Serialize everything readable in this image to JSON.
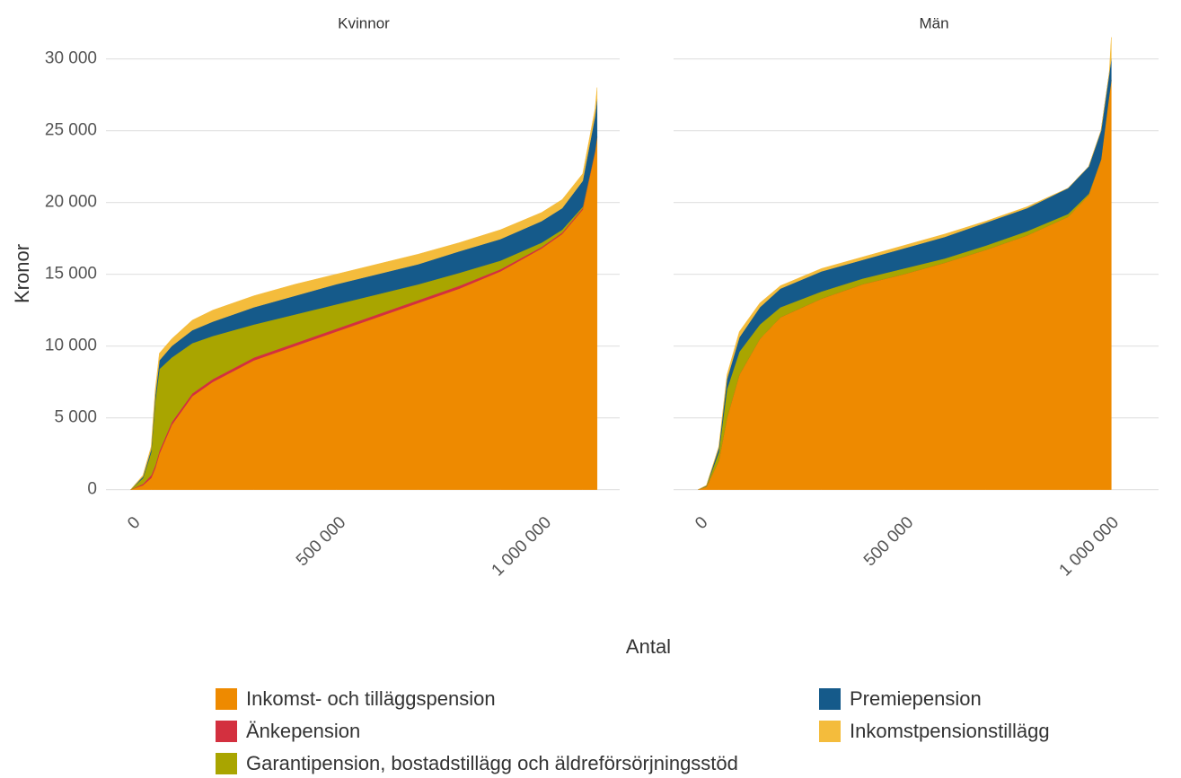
{
  "chart_data": [
    {
      "type": "area",
      "title": "Kvinnor",
      "ylabel": "Kronor",
      "xlabel": "Antal",
      "x": [
        0,
        30000,
        50000,
        60000,
        70000,
        100000,
        150000,
        200000,
        300000,
        400000,
        500000,
        600000,
        700000,
        800000,
        900000,
        1000000,
        1050000,
        1100000,
        1130000,
        1135000
      ],
      "series": [
        {
          "name": "Inkomst- och tilläggspension",
          "color": "#ee8a00",
          "values": [
            0,
            300,
            800,
            1500,
            2500,
            4500,
            6500,
            7500,
            9000,
            10000,
            11000,
            12000,
            13000,
            14000,
            15200,
            16800,
            17800,
            19500,
            23500,
            24500
          ]
        },
        {
          "name": "Änkepension",
          "color": "#d3303f",
          "values": [
            0,
            100,
            200,
            200,
            200,
            200,
            200,
            200,
            200,
            200,
            200,
            200,
            200,
            200,
            150,
            100,
            100,
            100,
            100,
            100
          ]
        },
        {
          "name": "Garantipension, bostadstillägg och äldreförsörjningsstöd",
          "color": "#a9a500",
          "values": [
            0,
            400,
            1600,
            4500,
            5700,
            4500,
            3500,
            3000,
            2300,
            2000,
            1700,
            1400,
            1100,
            900,
            600,
            300,
            200,
            100,
            0,
            0
          ]
        },
        {
          "name": "Premiepension",
          "color": "#155a8a",
          "values": [
            0,
            100,
            200,
            400,
            600,
            800,
            900,
            1000,
            1200,
            1300,
            1400,
            1400,
            1400,
            1500,
            1500,
            1500,
            1500,
            1800,
            2400,
            2600
          ]
        },
        {
          "name": "Inkomstpensionstillägg",
          "color": "#f4bc3c",
          "values": [
            0,
            100,
            200,
            400,
            500,
            500,
            700,
            800,
            800,
            800,
            700,
            700,
            700,
            600,
            650,
            600,
            600,
            500,
            500,
            800
          ]
        }
      ],
      "xlim": [
        -60000,
        1190000
      ],
      "ylim": [
        -1000,
        31600
      ],
      "xticks": [
        0,
        {
          "value": 500000,
          "label": "500 000"
        },
        {
          "value": 1000000,
          "label": "1 000 000"
        }
      ],
      "yticks": [
        0,
        {
          "value": 5000,
          "label": "5 000"
        },
        {
          "value": 10000,
          "label": "10 000"
        },
        {
          "value": 15000,
          "label": "15 000"
        },
        {
          "value": 20000,
          "label": "20 000"
        },
        {
          "value": 25000,
          "label": "25 000"
        },
        {
          "value": 30000,
          "label": "30 000"
        }
      ],
      "grid": true
    },
    {
      "type": "area",
      "title": "Män",
      "x": [
        0,
        20000,
        50000,
        70000,
        100000,
        150000,
        200000,
        300000,
        400000,
        500000,
        600000,
        700000,
        800000,
        900000,
        950000,
        980000,
        1000000,
        1005000
      ],
      "series": [
        {
          "color": "#ee8a00",
          "values": [
            0,
            200,
            2000,
            5000,
            8000,
            10500,
            12000,
            13300,
            14300,
            15000,
            15800,
            16700,
            17700,
            19000,
            20500,
            23000,
            27500,
            28500
          ]
        },
        {
          "color": "#d3303f",
          "values": [
            0,
            0,
            0,
            0,
            0,
            0,
            0,
            0,
            0,
            0,
            0,
            0,
            0,
            0,
            0,
            0,
            0,
            0
          ]
        },
        {
          "color": "#a9a500",
          "values": [
            0,
            50,
            600,
            2000,
            1600,
            1000,
            700,
            500,
            400,
            400,
            300,
            300,
            300,
            200,
            100,
            0,
            0,
            0
          ]
        },
        {
          "color": "#155a8a",
          "values": [
            0,
            30,
            300,
            700,
            1000,
            1200,
            1300,
            1400,
            1300,
            1400,
            1500,
            1600,
            1600,
            1800,
            1900,
            2000,
            1500,
            1500
          ]
        },
        {
          "color": "#f4bc3c",
          "values": [
            0,
            20,
            100,
            300,
            400,
            300,
            200,
            200,
            200,
            200,
            200,
            100,
            100,
            0,
            0,
            0,
            0,
            1500
          ]
        }
      ],
      "xlim": [
        -60000,
        1120000
      ],
      "ylim": [
        -1000,
        31600
      ],
      "xticks": [
        0,
        {
          "value": 500000,
          "label": "500 000"
        },
        {
          "value": 1000000,
          "label": "1 000 000"
        }
      ],
      "yticks": [
        0,
        {
          "value": 5000,
          "label": "5 000"
        },
        {
          "value": 10000,
          "label": "10 000"
        },
        {
          "value": 15000,
          "label": "15 000"
        },
        {
          "value": 20000,
          "label": "20 000"
        },
        {
          "value": 25000,
          "label": "25 000"
        },
        {
          "value": 30000,
          "label": "30 000"
        }
      ],
      "grid": true
    }
  ]
}
